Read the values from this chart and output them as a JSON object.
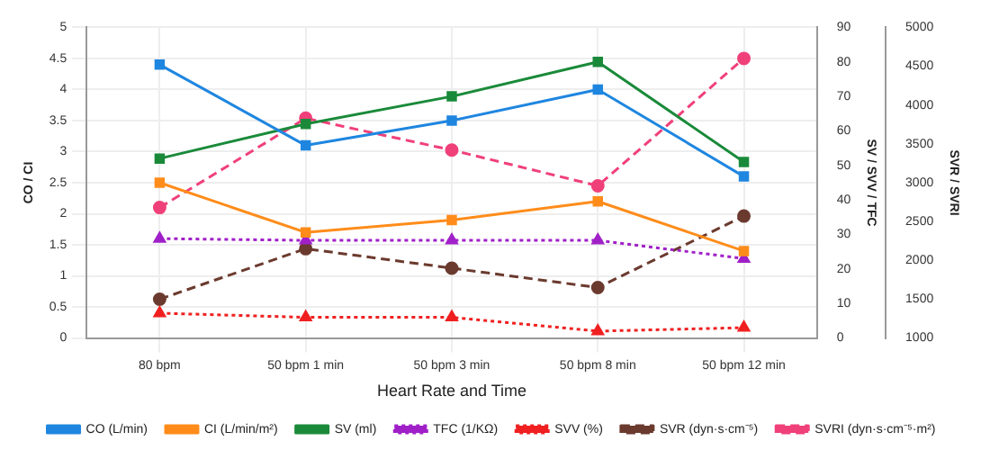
{
  "chart_data": {
    "type": "line",
    "xlabel": "Heart Rate and Time",
    "ylabel": "CO / CI",
    "y2label": "SV / SVV / TFC",
    "y3label": "SVR / SVRI",
    "categories": [
      "80 bpm",
      "50 bpm 1 min",
      "50 bpm 3 min",
      "50 bpm 8 min",
      "50 bpm 12 min"
    ],
    "ylim": [
      0,
      5
    ],
    "yticks": [
      0,
      0.5,
      1,
      1.5,
      2,
      2.5,
      3,
      3.5,
      4,
      4.5,
      5
    ],
    "y2lim": [
      0,
      90
    ],
    "y2ticks": [
      0,
      10,
      20,
      30,
      40,
      50,
      60,
      70,
      80,
      90
    ],
    "y3lim": [
      1000,
      5000
    ],
    "y3ticks": [
      1000,
      1500,
      2000,
      2500,
      3000,
      3500,
      4000,
      4500,
      5000
    ],
    "grid": true,
    "legend": "bottom",
    "series": [
      {
        "name": "CO (L/min)",
        "color": "#1f86e0",
        "values": [
          4.4,
          3.1,
          3.5,
          4.0,
          2.6
        ],
        "marker": "square",
        "line_style": "solid"
      },
      {
        "name": "CI (L/min/m²)",
        "color": "#ff8c1a",
        "values": [
          2.5,
          1.7,
          1.9,
          2.2,
          1.4
        ],
        "marker": "square",
        "line_style": "solid"
      },
      {
        "name": "SV (ml)",
        "color": "#1a8a3a",
        "values": [
          52,
          62,
          70,
          80,
          51
        ],
        "axis": "y2",
        "marker": "square",
        "line_style": "solid"
      },
      {
        "name": "TFC (1/KΩ)",
        "color": "#a020c8",
        "values": [
          28.8,
          28.3,
          28.3,
          28.3,
          23
        ],
        "axis": "y2",
        "marker": "triangle",
        "line_style": "dotted"
      },
      {
        "name": "SVV (%)",
        "color": "#f02020",
        "values": [
          7.2,
          6,
          6,
          2,
          3
        ],
        "axis": "y2",
        "marker": "triangle",
        "line_style": "dotted"
      },
      {
        "name": "SVR (dyn·s·cm⁻⁵)",
        "color": "#6b3a2e",
        "values": [
          1500,
          2150,
          1900,
          1650,
          2570
        ],
        "axis": "y3",
        "marker": "circle",
        "line_style": "dashed"
      },
      {
        "name": "SVRI (dyn·s·cm⁻⁵·m²)",
        "color": "#f0407a",
        "values": [
          2680,
          3830,
          3420,
          2960,
          4600
        ],
        "axis": "y3",
        "marker": "circle",
        "line_style": "dashed"
      }
    ]
  }
}
